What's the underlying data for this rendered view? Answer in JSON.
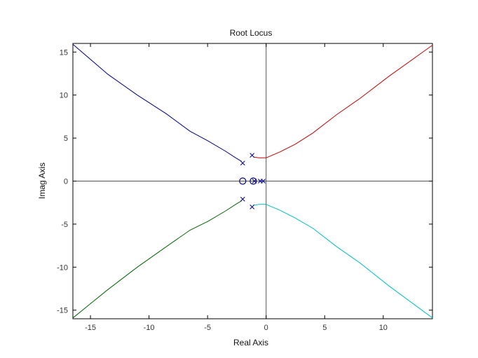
{
  "chart_data": {
    "type": "line",
    "title": "Root Locus",
    "xlabel": "Real Axis",
    "ylabel": "Imag Axis",
    "xlim": [
      -16.5,
      14.2
    ],
    "ylim": [
      -16,
      16
    ],
    "x_ticks": [
      -15,
      -10,
      -5,
      0,
      5,
      10
    ],
    "y_ticks": [
      -15,
      -10,
      -5,
      0,
      5,
      10,
      15
    ],
    "x_tick_labels": [
      "-15",
      "-10",
      "-5",
      "0",
      "5",
      "10"
    ],
    "y_tick_labels": [
      "-15",
      "-10",
      "-5",
      "0",
      "5",
      "10",
      "15"
    ],
    "grid": false,
    "series": [
      {
        "color": "#00008b",
        "points": [
          [
            -2.1,
            2.3
          ],
          [
            -2.6,
            2.7
          ],
          [
            -3.5,
            3.5
          ],
          [
            -5.0,
            4.7
          ],
          [
            -6.5,
            5.8
          ],
          [
            -8.5,
            7.8
          ],
          [
            -11.0,
            10.0
          ],
          [
            -13.5,
            12.4
          ],
          [
            -16.5,
            15.9
          ]
        ]
      },
      {
        "color": "#cc0000",
        "points": [
          [
            -1.1,
            2.8
          ],
          [
            -0.6,
            2.7
          ],
          [
            0.0,
            2.7
          ],
          [
            0.5,
            3.0
          ],
          [
            1.2,
            3.4
          ],
          [
            2.5,
            4.3
          ],
          [
            4.0,
            5.6
          ],
          [
            6.0,
            7.7
          ],
          [
            8.0,
            9.6
          ],
          [
            10.5,
            12.2
          ],
          [
            14.2,
            15.8
          ]
        ]
      },
      {
        "color": "#006400",
        "points": [
          [
            -2.1,
            -2.3
          ],
          [
            -2.6,
            -2.7
          ],
          [
            -3.5,
            -3.5
          ],
          [
            -5.0,
            -4.7
          ],
          [
            -6.5,
            -5.7
          ],
          [
            -8.5,
            -7.6
          ],
          [
            -11.0,
            -10.0
          ],
          [
            -13.5,
            -12.6
          ],
          [
            -16.5,
            -15.9
          ]
        ]
      },
      {
        "color": "#00bfbf",
        "points": [
          [
            -1.1,
            -2.8
          ],
          [
            -0.6,
            -2.7
          ],
          [
            0.0,
            -2.7
          ],
          [
            0.5,
            -3.0
          ],
          [
            1.2,
            -3.4
          ],
          [
            2.5,
            -4.3
          ],
          [
            4.0,
            -5.5
          ],
          [
            6.0,
            -7.6
          ],
          [
            8.0,
            -9.5
          ],
          [
            10.5,
            -12.2
          ],
          [
            14.2,
            -15.9
          ]
        ]
      }
    ],
    "poles": [
      [
        -2.0,
        2.1
      ],
      [
        -2.0,
        -2.1
      ],
      [
        -1.2,
        3.0
      ],
      [
        -1.2,
        -3.0
      ],
      [
        -0.5,
        0.0
      ],
      [
        -0.25,
        0.0
      ],
      [
        -1.0,
        0.0
      ]
    ],
    "zeros": [
      [
        -2.0,
        0.0
      ],
      [
        -1.1,
        0.0
      ]
    ],
    "marker_color": "#00008b",
    "axis_line_color": "#555555"
  }
}
